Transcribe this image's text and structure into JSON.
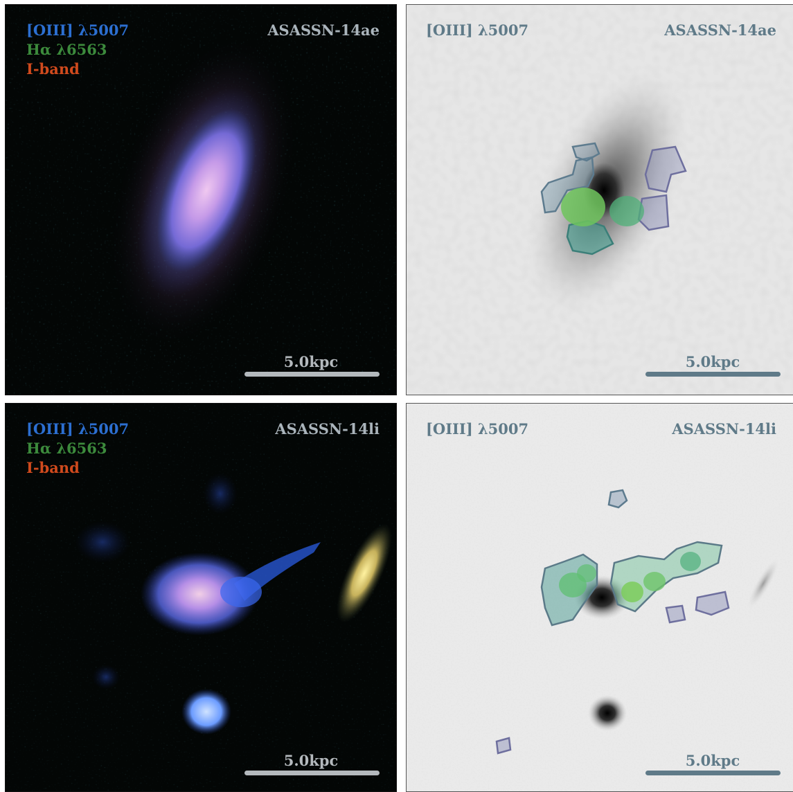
{
  "panels": [
    {
      "object": "ASASSN-14ae",
      "style": "color-composite",
      "legend": [
        {
          "label": "[OIII] λ5007",
          "color": "#2c6fd1"
        },
        {
          "label": "Hα λ6563",
          "color": "#3c8a3c"
        },
        {
          "label": "I-band",
          "color": "#d04a1d"
        }
      ],
      "scalebar": "5.0kpc",
      "scalebar_color": "#b4b9bd"
    },
    {
      "object": "ASASSN-14ae",
      "style": "greyscale-contour",
      "legend": [
        {
          "label": "[OIII] λ5007",
          "color": "#5f7a88"
        }
      ],
      "scalebar": "5.0kpc",
      "scalebar_color": "#5f7a88"
    },
    {
      "object": "ASASSN-14li",
      "style": "color-composite",
      "legend": [
        {
          "label": "[OIII] λ5007",
          "color": "#2c6fd1"
        },
        {
          "label": "Hα λ6563",
          "color": "#3c8a3c"
        },
        {
          "label": "I-band",
          "color": "#d04a1d"
        }
      ],
      "scalebar": "5.0kpc",
      "scalebar_color": "#b4b9bd"
    },
    {
      "object": "ASASSN-14li",
      "style": "greyscale-contour",
      "legend": [
        {
          "label": "[OIII] λ5007",
          "color": "#5f7a88"
        }
      ],
      "scalebar": "5.0kpc",
      "scalebar_color": "#5f7a88"
    }
  ],
  "label_color_object_dark": "#aab4bb",
  "label_color_object_light": "#5f7a88"
}
